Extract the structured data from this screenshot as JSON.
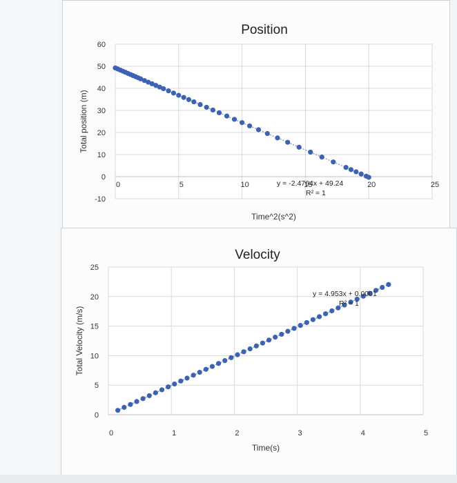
{
  "chart_data": [
    {
      "type": "scatter",
      "title": "Position",
      "xlabel": "Time^2(s^2)",
      "ylabel": "Total position (m)",
      "xlim": [
        0,
        25
      ],
      "ylim": [
        -10,
        60
      ],
      "x_ticks": [
        "0",
        "5",
        "10",
        "15",
        "20",
        "25"
      ],
      "y_ticks": [
        "-10",
        "0",
        "10",
        "20",
        "30",
        "40",
        "50",
        "60"
      ],
      "grid": true,
      "color": "#3b62b4",
      "trendline": {
        "slope": -2.4764,
        "intercept": 49.24
      },
      "equation": "y = -2.4764x + 49.24",
      "r2_label": "R² = 1",
      "x": [
        0.0,
        0.2,
        0.4,
        0.6,
        0.8,
        1.0,
        1.2,
        1.4,
        1.6,
        1.8,
        2.0,
        2.3,
        2.6,
        2.9,
        3.2,
        3.5,
        3.8,
        4.2,
        4.6,
        5.0,
        5.4,
        5.8,
        6.2,
        6.7,
        7.2,
        7.7,
        8.2,
        8.8,
        9.4,
        10.0,
        10.6,
        11.3,
        12.0,
        12.8,
        13.6,
        14.5,
        15.4,
        16.3,
        17.2,
        18.2,
        18.6,
        19.0,
        19.4,
        19.8,
        20.0
      ],
      "y": [
        49.24,
        48.74,
        48.25,
        47.75,
        47.26,
        46.76,
        46.27,
        45.77,
        45.28,
        44.78,
        44.29,
        43.54,
        42.8,
        42.06,
        41.32,
        40.57,
        39.83,
        38.84,
        37.85,
        36.86,
        35.87,
        34.88,
        33.89,
        32.65,
        31.41,
        30.17,
        28.93,
        27.45,
        25.96,
        24.48,
        22.99,
        21.26,
        19.52,
        17.54,
        15.56,
        13.33,
        11.1,
        8.87,
        6.65,
        4.17,
        3.18,
        2.19,
        1.2,
        0.21,
        -0.29
      ]
    },
    {
      "type": "scatter",
      "title": "Velocity",
      "xlabel": "Time(s)",
      "ylabel": "Total Velocity (m/s)",
      "xlim": [
        0,
        5
      ],
      "ylim": [
        0,
        25
      ],
      "x_ticks": [
        "0",
        "1",
        "2",
        "3",
        "4",
        "5"
      ],
      "y_ticks": [
        "0",
        "5",
        "10",
        "15",
        "20",
        "25"
      ],
      "grid": true,
      "color": "#3b62b4",
      "trendline": {
        "slope": 4.953,
        "intercept": 0.0001
      },
      "equation": "y = 4.953x + 0.0001",
      "r2_label": "R² = 1",
      "x": [
        0.15,
        0.25,
        0.35,
        0.45,
        0.55,
        0.65,
        0.75,
        0.85,
        0.95,
        1.05,
        1.15,
        1.25,
        1.35,
        1.45,
        1.55,
        1.65,
        1.75,
        1.85,
        1.95,
        2.05,
        2.15,
        2.25,
        2.35,
        2.45,
        2.55,
        2.65,
        2.75,
        2.85,
        2.95,
        3.05,
        3.15,
        3.25,
        3.35,
        3.45,
        3.55,
        3.65,
        3.75,
        3.85,
        3.95,
        4.05,
        4.15,
        4.25,
        4.35,
        4.45
      ],
      "y": [
        0.74,
        1.24,
        1.73,
        2.23,
        2.72,
        3.22,
        3.71,
        4.21,
        4.71,
        5.2,
        5.7,
        6.19,
        6.69,
        7.18,
        7.68,
        8.17,
        8.67,
        9.16,
        9.66,
        10.15,
        10.65,
        11.14,
        11.64,
        12.13,
        12.63,
        13.13,
        13.62,
        14.12,
        14.61,
        15.11,
        15.6,
        16.1,
        16.59,
        17.09,
        17.58,
        18.08,
        18.57,
        19.07,
        19.56,
        20.06,
        20.55,
        21.05,
        21.55,
        22.04
      ]
    }
  ]
}
